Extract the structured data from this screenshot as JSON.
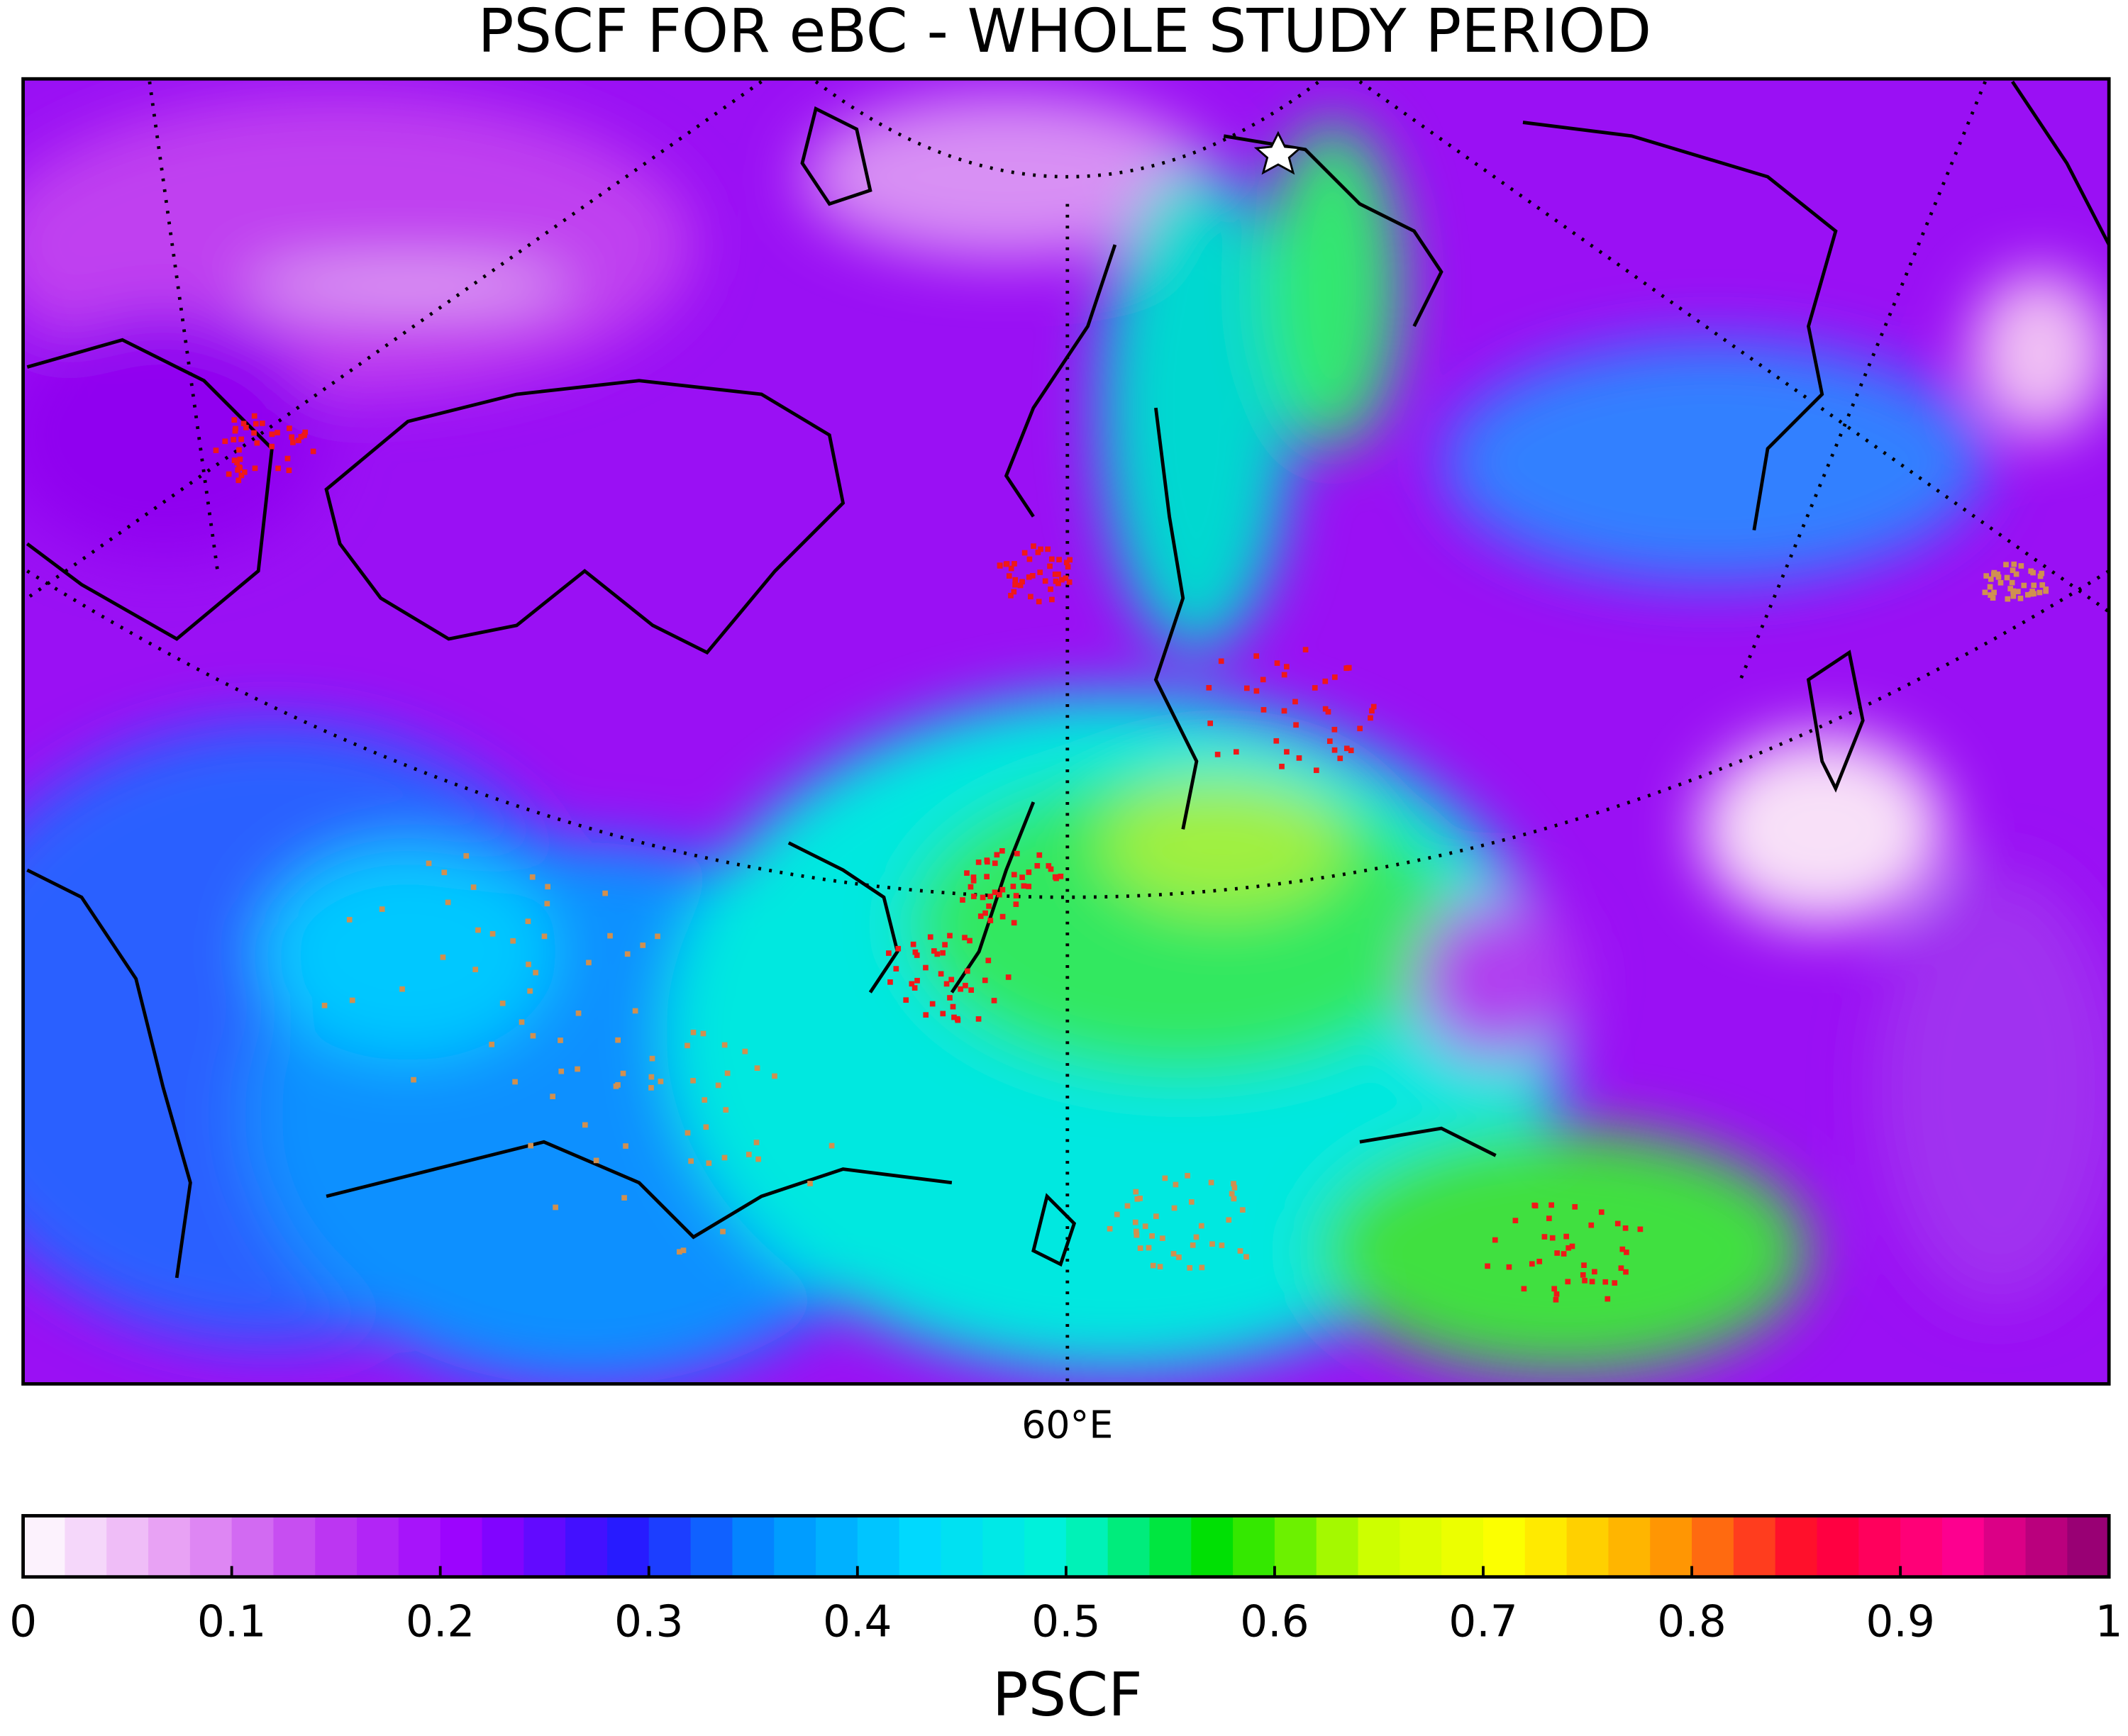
{
  "chart_data": {
    "type": "colormap-map",
    "title": "PSCF FOR eBC - WHOLE STUDY PERIOD",
    "meridian_label": "60°E",
    "colorbar": {
      "label": "PSCF",
      "lim": [
        0,
        1
      ],
      "ticks": [
        0,
        0.1,
        0.2,
        0.3,
        0.4,
        0.5,
        0.6,
        0.7,
        0.8,
        0.9,
        1
      ],
      "colors": [
        "#ffffff",
        "#e8a0f4",
        "#c03cf0",
        "#9a00ff",
        "#2a14ff",
        "#0090ff",
        "#00d8ff",
        "#00f5d5",
        "#00e000",
        "#c8ff00",
        "#ffff00",
        "#ffa000",
        "#ff0030",
        "#ff0090",
        "#880070"
      ]
    }
  }
}
